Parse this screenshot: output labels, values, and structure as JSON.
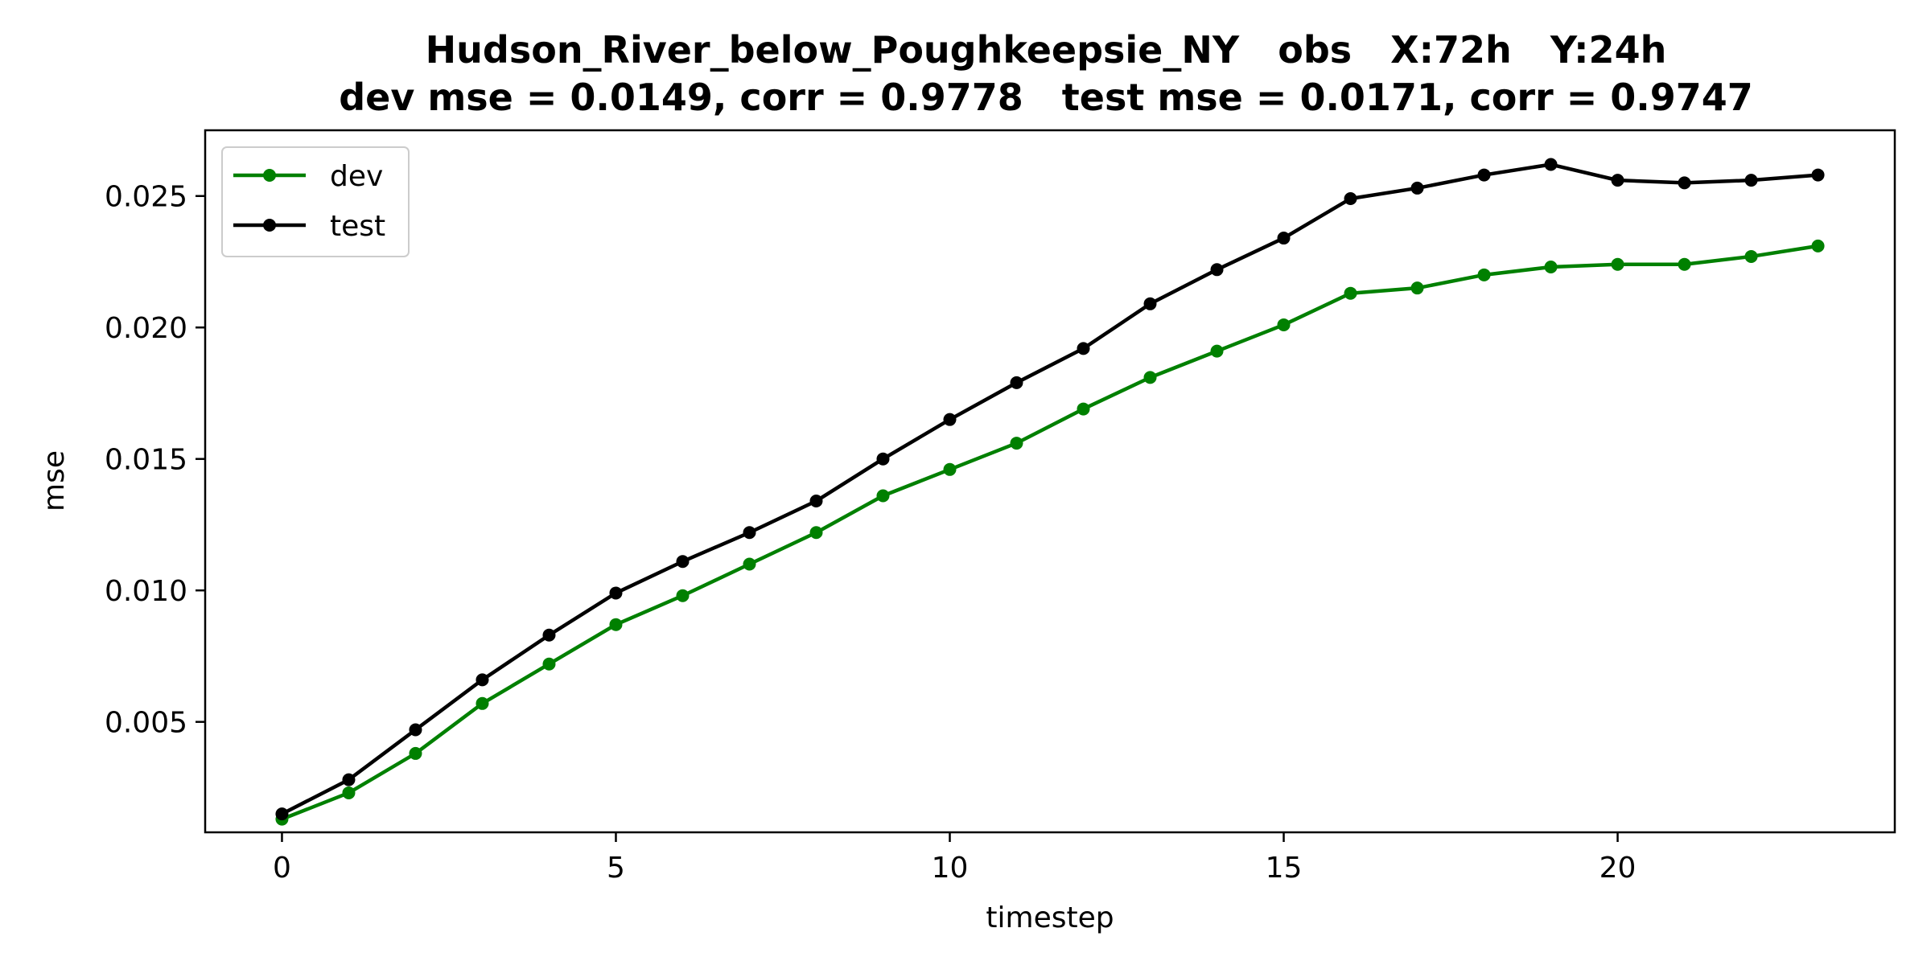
{
  "chart_data": {
    "type": "line",
    "title": "Hudson_River_below_Poughkeepsie_NY   obs   X:72h   Y:24h",
    "subtitle": "dev mse = 0.0149, corr = 0.9778   test mse = 0.0171, corr = 0.9747",
    "xlabel": "timestep",
    "ylabel": "mse",
    "xlim": [
      -1.15,
      24.15
    ],
    "ylim": [
      0.0008,
      0.0275
    ],
    "x_ticks": [
      0,
      5,
      10,
      15,
      20
    ],
    "x_tick_labels": [
      "0",
      "5",
      "10",
      "15",
      "20"
    ],
    "y_ticks": [
      0.005,
      0.01,
      0.015,
      0.02,
      0.025
    ],
    "y_tick_labels": [
      "0.005",
      "0.010",
      "0.015",
      "0.020",
      "0.025"
    ],
    "grid": false,
    "legend_position": "top-left",
    "x": [
      0,
      1,
      2,
      3,
      4,
      5,
      6,
      7,
      8,
      9,
      10,
      11,
      12,
      13,
      14,
      15,
      16,
      17,
      18,
      19,
      20,
      21,
      22,
      23
    ],
    "series": [
      {
        "name": "dev",
        "color": "#008000",
        "values": [
          0.0013,
          0.0023,
          0.0038,
          0.0057,
          0.0072,
          0.0087,
          0.0098,
          0.011,
          0.0122,
          0.0136,
          0.0146,
          0.0156,
          0.0169,
          0.0181,
          0.0191,
          0.0201,
          0.0213,
          0.0215,
          0.022,
          0.0223,
          0.0224,
          0.0224,
          0.0227,
          0.0231
        ]
      },
      {
        "name": "test",
        "color": "#000000",
        "values": [
          0.0015,
          0.0028,
          0.0047,
          0.0066,
          0.0083,
          0.0099,
          0.0111,
          0.0122,
          0.0134,
          0.015,
          0.0165,
          0.0179,
          0.0192,
          0.0209,
          0.0222,
          0.0234,
          0.0249,
          0.0253,
          0.0258,
          0.0262,
          0.0256,
          0.0255,
          0.0256,
          0.0258
        ]
      }
    ]
  }
}
